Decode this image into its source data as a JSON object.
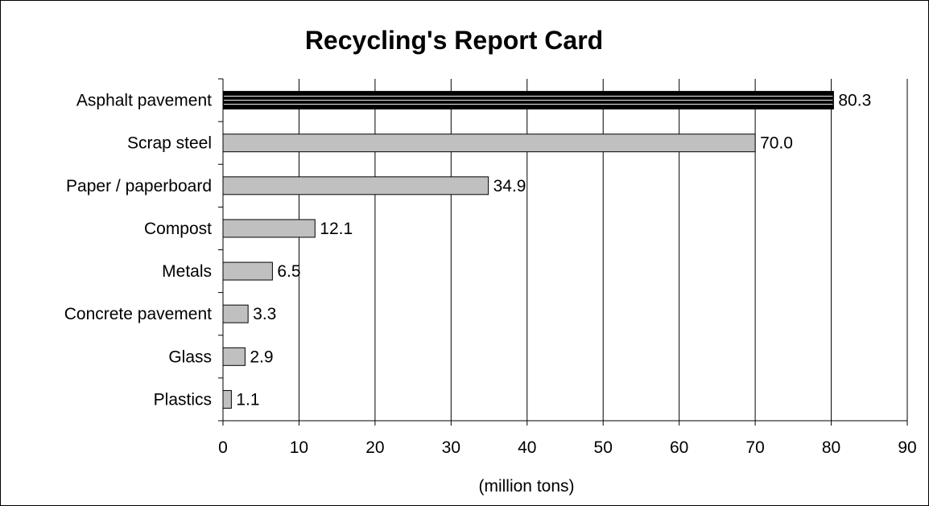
{
  "chart_data": {
    "type": "bar",
    "orientation": "horizontal",
    "title": "Recycling's Report Card",
    "xlabel": "(million tons)",
    "ylabel": "",
    "xlim": [
      0,
      90
    ],
    "tick_step": 10,
    "grid": "vertical",
    "categories": [
      "Asphalt pavement",
      "Scrap steel",
      "Paper / paperboard",
      "Compost",
      "Metals",
      "Concrete pavement",
      "Glass",
      "Plastics"
    ],
    "values": [
      80.3,
      70.0,
      34.9,
      12.1,
      6.5,
      3.3,
      2.9,
      1.1
    ],
    "value_labels": [
      "80.3",
      "70.0",
      "34.9",
      "12.1",
      "6.5",
      "3.3",
      "2.9",
      "1.1"
    ],
    "tick_labels": [
      "0",
      "10",
      "20",
      "30",
      "40",
      "50",
      "60",
      "70",
      "80",
      "90"
    ],
    "colors": {
      "highlight": "#000000",
      "bar": "#c0c0c0",
      "bar_stroke": "#000000",
      "highlight_stripe": "#ffffff"
    },
    "highlight_index": 0
  }
}
